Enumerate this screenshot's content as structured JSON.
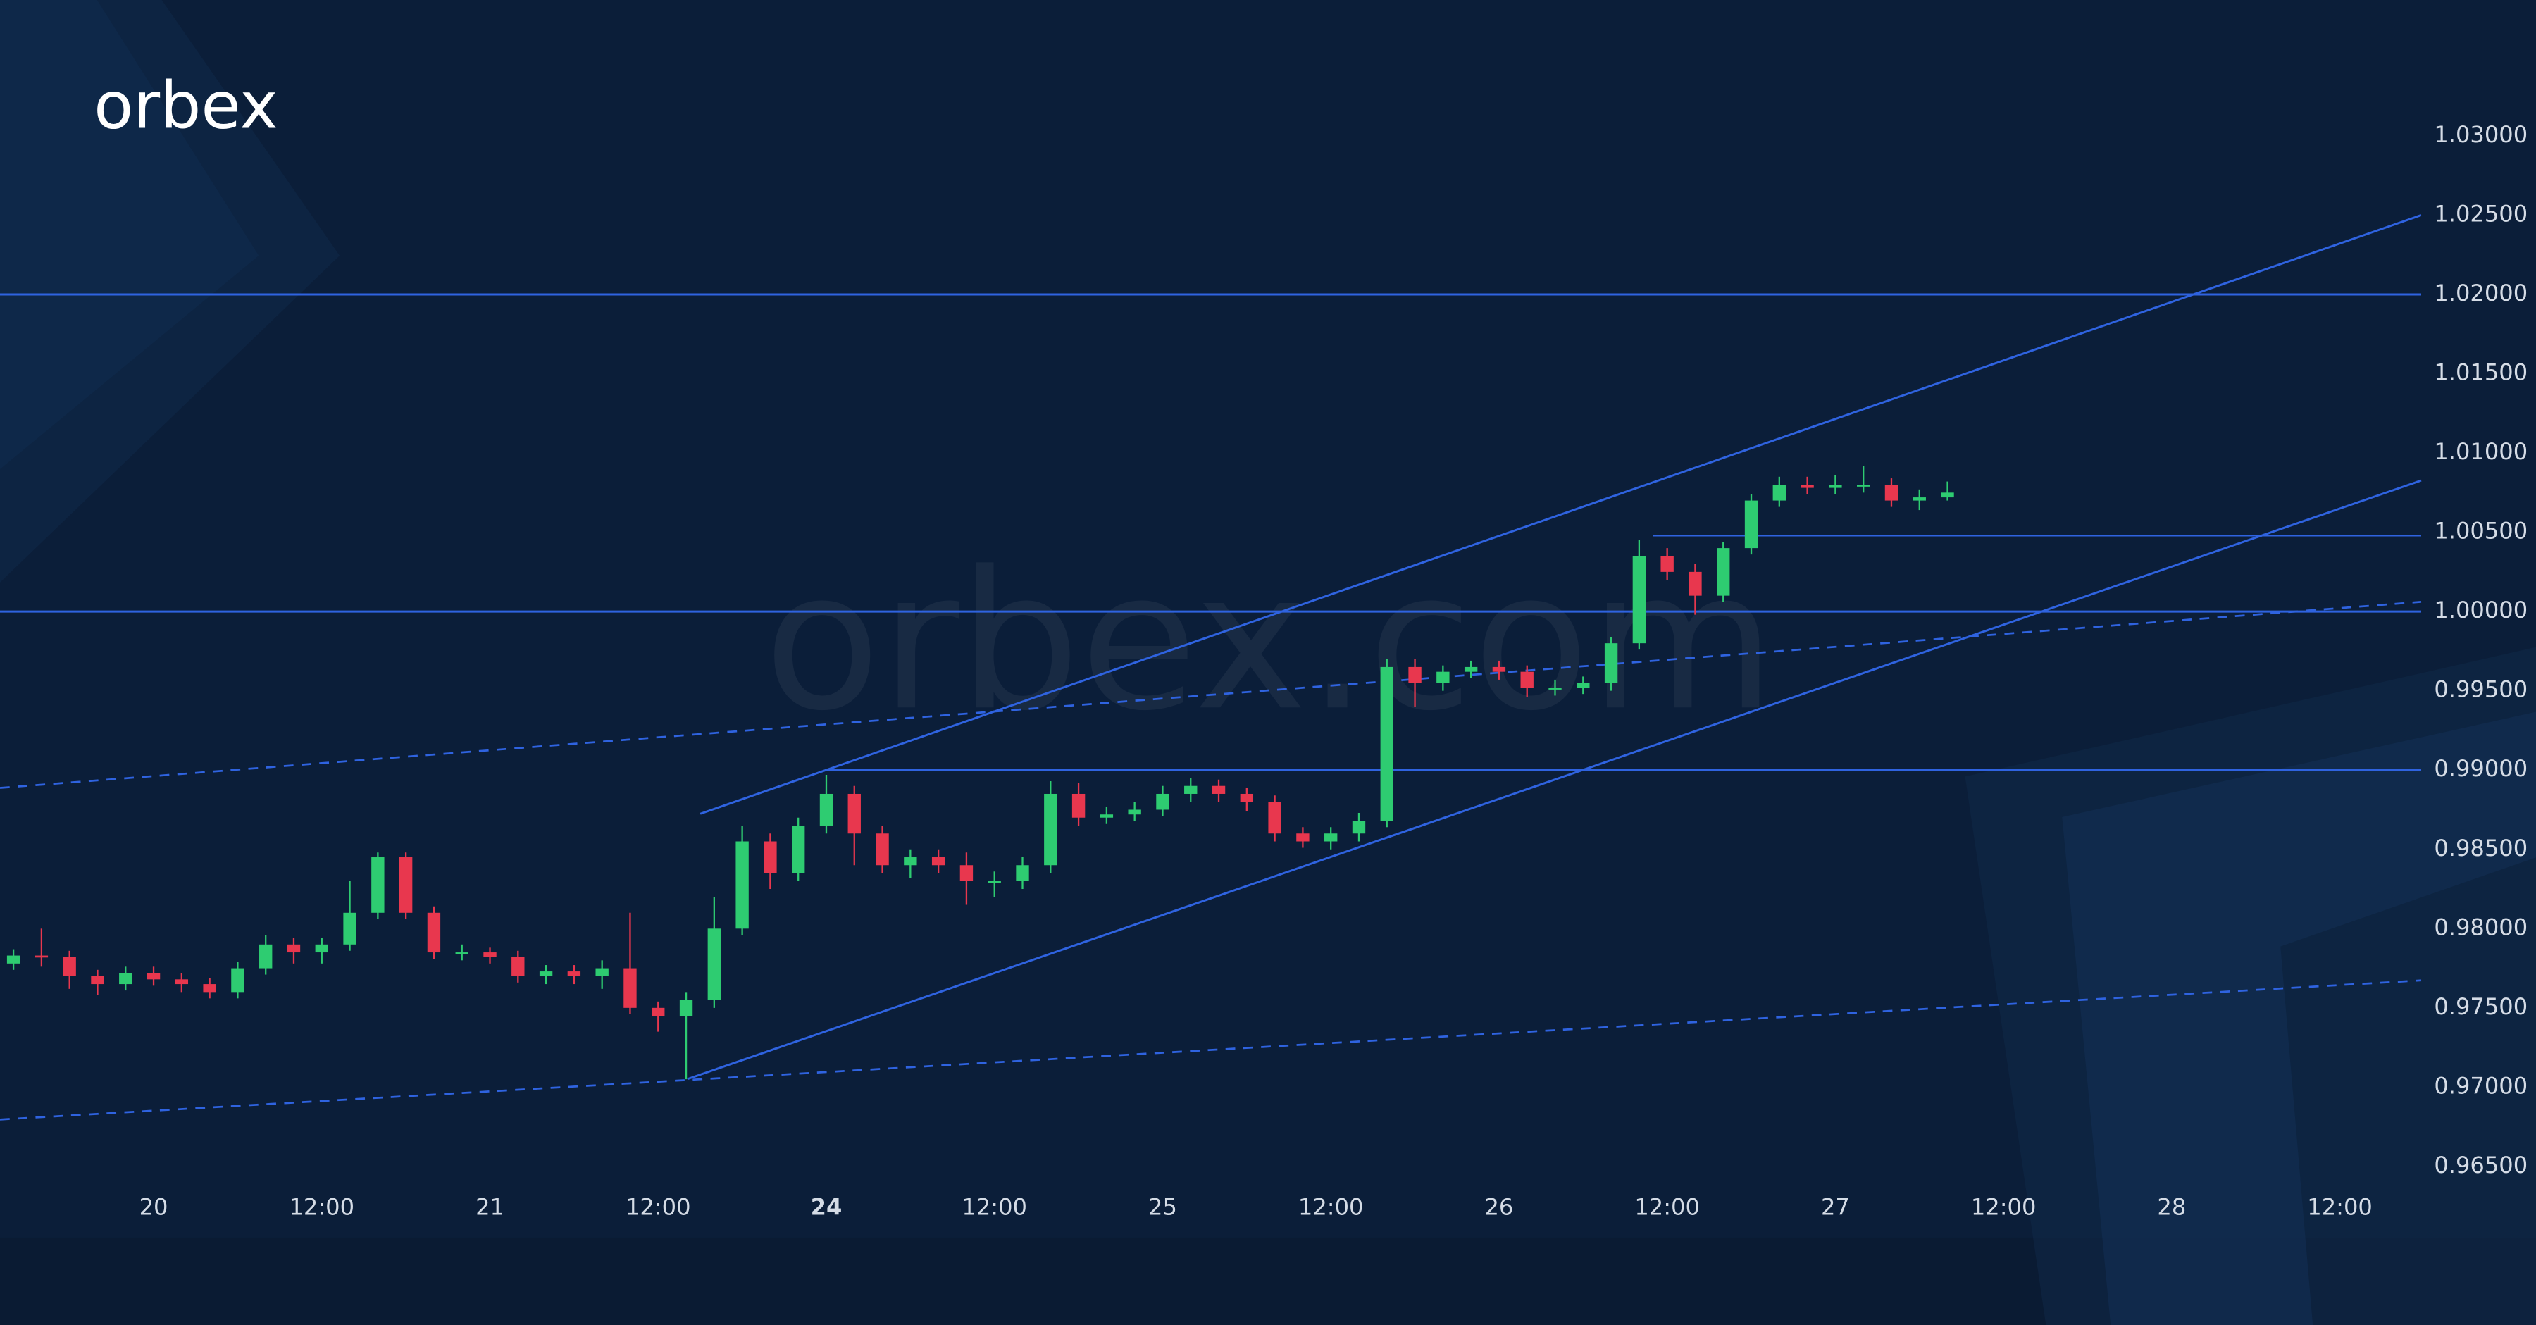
{
  "logo": "orbex",
  "watermark": "orbex.com",
  "chart_data": {
    "type": "candlestick",
    "up_color": "#2ecc71",
    "down_color": "#e8374e",
    "xlim": [
      -10.96,
      161.8
    ],
    "xticks": [
      {
        "value": 0,
        "label": "20"
      },
      {
        "value": 12,
        "label": "12:00"
      },
      {
        "value": 24,
        "label": "21"
      },
      {
        "value": 36,
        "label": "12:00"
      },
      {
        "value": 48,
        "label": "24"
      },
      {
        "value": 60,
        "label": "12:00"
      },
      {
        "value": 72,
        "label": "25"
      },
      {
        "value": 84,
        "label": "12:00"
      },
      {
        "value": 96,
        "label": "26"
      },
      {
        "value": 108,
        "label": "12:00"
      },
      {
        "value": 120,
        "label": "27"
      },
      {
        "value": 132,
        "label": "12:00"
      },
      {
        "value": 144,
        "label": "28"
      },
      {
        "value": 156,
        "label": "12:00"
      }
    ],
    "ylim": [
      0.96051,
      1.03857
    ],
    "yticks": [
      {
        "value": 0.965,
        "label": "0.96500"
      },
      {
        "value": 0.97,
        "label": "0.97000"
      },
      {
        "value": 0.975,
        "label": "0.97500"
      },
      {
        "value": 0.98,
        "label": "0.98000"
      },
      {
        "value": 0.985,
        "label": "0.98500"
      },
      {
        "value": 0.99,
        "label": "0.99000"
      },
      {
        "value": 0.995,
        "label": "0.99500"
      },
      {
        "value": 1.0,
        "label": "1.00000"
      },
      {
        "value": 1.005,
        "label": "1.00500"
      },
      {
        "value": 1.01,
        "label": "1.01000"
      },
      {
        "value": 1.015,
        "label": "1.01500"
      },
      {
        "value": 1.02,
        "label": "1.02000"
      },
      {
        "value": 1.025,
        "label": "1.02500"
      },
      {
        "value": 1.03,
        "label": "1.03000"
      }
    ],
    "x": [
      -10,
      -8,
      -6,
      -4,
      -2,
      0,
      2,
      4,
      6,
      8,
      10,
      12,
      14,
      16,
      18,
      20,
      22,
      24,
      26,
      28,
      30,
      32,
      34,
      36,
      38,
      40,
      42,
      44,
      46,
      48,
      50,
      52,
      54,
      56,
      58,
      60,
      62,
      64,
      66,
      68,
      70,
      72,
      74,
      76,
      78,
      80,
      82,
      84,
      86,
      88,
      90,
      92,
      94,
      96,
      98,
      100,
      102,
      104,
      106,
      108,
      110,
      112,
      114,
      116,
      118,
      120,
      122,
      124,
      126,
      128
    ],
    "open": [
      0.9778,
      0.9783,
      0.9782,
      0.977,
      0.9765,
      0.9772,
      0.9768,
      0.9765,
      0.976,
      0.9775,
      0.979,
      0.9785,
      0.979,
      0.981,
      0.9845,
      0.981,
      0.9785,
      0.9785,
      0.9782,
      0.977,
      0.9773,
      0.977,
      0.9775,
      0.975,
      0.9745,
      0.9755,
      0.98,
      0.9855,
      0.9835,
      0.9865,
      0.9885,
      0.986,
      0.984,
      0.9845,
      0.984,
      0.983,
      0.983,
      0.984,
      0.9885,
      0.987,
      0.9872,
      0.9875,
      0.9885,
      0.989,
      0.9885,
      0.988,
      0.986,
      0.9855,
      0.986,
      0.9868,
      0.9965,
      0.9955,
      0.9962,
      0.9965,
      0.9962,
      0.9952,
      0.9952,
      0.9955,
      0.998,
      1.0035,
      1.0025,
      1.001,
      1.004,
      1.007,
      1.008,
      1.0078,
      1.008,
      1.008,
      1.007,
      1.0072
    ],
    "high": [
      0.9787,
      0.98,
      0.9786,
      0.9774,
      0.9776,
      0.9776,
      0.9772,
      0.9769,
      0.9779,
      0.9796,
      0.9794,
      0.9794,
      0.983,
      0.9848,
      0.9848,
      0.9814,
      0.979,
      0.9788,
      0.9786,
      0.9777,
      0.9777,
      0.978,
      0.981,
      0.9754,
      0.976,
      0.982,
      0.9865,
      0.986,
      0.987,
      0.9897,
      0.989,
      0.9865,
      0.985,
      0.985,
      0.9848,
      0.9836,
      0.9845,
      0.9893,
      0.9892,
      0.9877,
      0.988,
      0.989,
      0.9895,
      0.9894,
      0.9889,
      0.9884,
      0.9864,
      0.9864,
      0.9873,
      0.997,
      0.997,
      0.9966,
      0.9969,
      0.9969,
      0.9966,
      0.9957,
      0.9959,
      0.9984,
      1.0045,
      1.004,
      1.003,
      1.0044,
      1.0074,
      1.0085,
      1.0085,
      1.0086,
      1.0092,
      1.0084,
      1.0077,
      1.0082
    ],
    "low": [
      0.9774,
      0.9776,
      0.9762,
      0.9758,
      0.9761,
      0.9764,
      0.976,
      0.9756,
      0.9756,
      0.9771,
      0.9778,
      0.9778,
      0.9786,
      0.9806,
      0.9806,
      0.9781,
      0.978,
      0.9778,
      0.9766,
      0.9765,
      0.9765,
      0.9762,
      0.9746,
      0.9735,
      0.9705,
      0.975,
      0.9796,
      0.9825,
      0.983,
      0.986,
      0.984,
      0.9835,
      0.9832,
      0.9835,
      0.9815,
      0.982,
      0.9825,
      0.9835,
      0.9865,
      0.9866,
      0.9868,
      0.9871,
      0.988,
      0.988,
      0.9874,
      0.9855,
      0.9851,
      0.985,
      0.9855,
      0.9864,
      0.994,
      0.995,
      0.9958,
      0.9957,
      0.9946,
      0.9947,
      0.9948,
      0.995,
      0.9976,
      1.002,
      0.9998,
      1.0006,
      1.0036,
      1.0066,
      1.0074,
      1.0074,
      1.0075,
      1.0066,
      1.0064,
      1.007
    ],
    "close": [
      0.9783,
      0.9782,
      0.977,
      0.9765,
      0.9772,
      0.9768,
      0.9765,
      0.976,
      0.9775,
      0.979,
      0.9785,
      0.979,
      0.981,
      0.9845,
      0.981,
      0.9785,
      0.9785,
      0.9782,
      0.977,
      0.9773,
      0.977,
      0.9775,
      0.975,
      0.9745,
      0.9755,
      0.98,
      0.9855,
      0.9835,
      0.9865,
      0.9885,
      0.986,
      0.984,
      0.9845,
      0.984,
      0.983,
      0.983,
      0.984,
      0.9885,
      0.987,
      0.9872,
      0.9875,
      0.9885,
      0.989,
      0.9885,
      0.988,
      0.986,
      0.9855,
      0.986,
      0.9868,
      0.9965,
      0.9955,
      0.9962,
      0.9965,
      0.9962,
      0.9952,
      0.9952,
      0.9955,
      0.998,
      1.0035,
      1.0025,
      1.001,
      1.004,
      1.007,
      1.008,
      1.0078,
      1.008,
      1.008,
      1.007,
      1.0072,
      1.0075
    ]
  }
}
